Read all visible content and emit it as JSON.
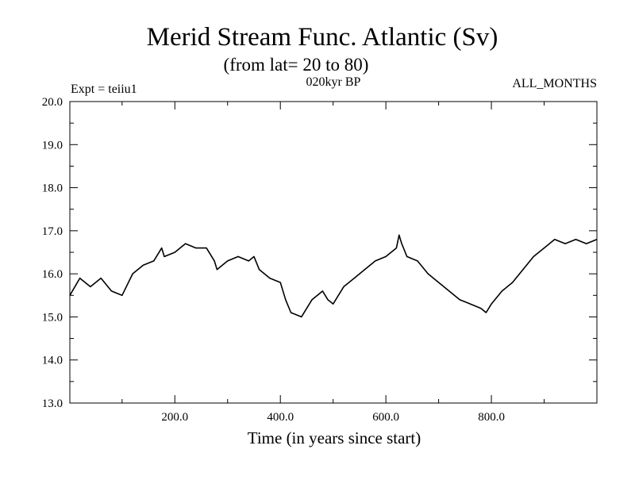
{
  "chart_data": {
    "type": "line",
    "title": "Merid Stream Func. Atlantic (Sv)",
    "subtitle": "(from lat= 20 to 80)",
    "annotations": {
      "experiment": "Expt = teiiu1",
      "period": "020kyr BP",
      "months": "ALL_MONTHS"
    },
    "xlabel": "Time (in years since start)",
    "ylabel": "",
    "xlim": [
      1,
      1000
    ],
    "ylim": [
      13.0,
      20.0
    ],
    "xticks": [
      200,
      400,
      600,
      800
    ],
    "xtick_labels": [
      "200.0",
      "400.0",
      "600.0",
      "800.0"
    ],
    "yticks": [
      13,
      14,
      15,
      16,
      17,
      18,
      19,
      20
    ],
    "ytick_labels": [
      "13.0",
      "14.0",
      "15.0",
      "16.0",
      "17.0",
      "18.0",
      "19.0",
      "20.0"
    ],
    "grid": false,
    "legend": "none",
    "line_color": "#000000",
    "series": [
      {
        "x": [
          1,
          20,
          40,
          60,
          80,
          100,
          120,
          140,
          160,
          175,
          180,
          200,
          220,
          240,
          260,
          275,
          280,
          300,
          320,
          340,
          350,
          360,
          380,
          400,
          410,
          420,
          440,
          460,
          480,
          490,
          500,
          520,
          540,
          560,
          580,
          600,
          620,
          625,
          630,
          640,
          660,
          680,
          700,
          720,
          740,
          760,
          780,
          790,
          800,
          820,
          840,
          860,
          880,
          900,
          920,
          940,
          960,
          980,
          1000
        ],
        "y": [
          15.5,
          15.9,
          15.7,
          15.9,
          15.6,
          15.5,
          16.0,
          16.2,
          16.3,
          16.6,
          16.4,
          16.5,
          16.7,
          16.6,
          16.6,
          16.3,
          16.1,
          16.3,
          16.4,
          16.3,
          16.4,
          16.1,
          15.9,
          15.8,
          15.4,
          15.1,
          15.0,
          15.4,
          15.6,
          15.4,
          15.3,
          15.7,
          15.9,
          16.1,
          16.3,
          16.4,
          16.6,
          16.9,
          16.7,
          16.4,
          16.3,
          16.0,
          15.8,
          15.6,
          15.4,
          15.3,
          15.2,
          15.1,
          15.3,
          15.6,
          15.8,
          16.1,
          16.4,
          16.6,
          16.8,
          16.7,
          16.8,
          16.7,
          16.8
        ]
      }
    ]
  }
}
